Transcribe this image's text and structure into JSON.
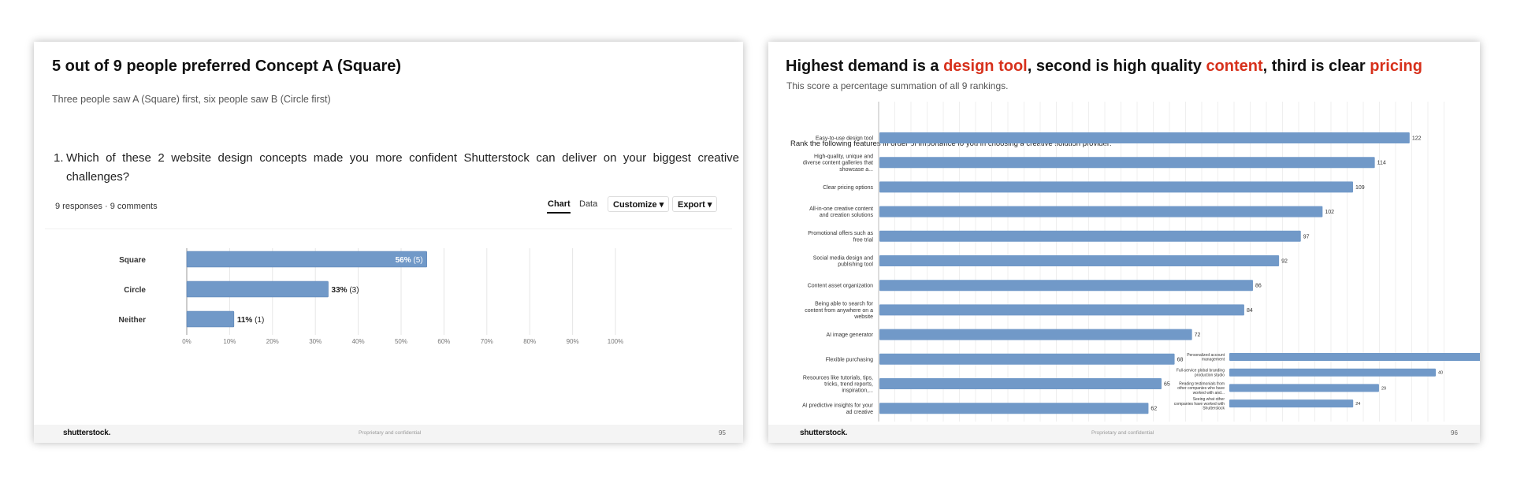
{
  "slides": [
    {
      "title": "5 out of 9 people preferred Concept A (Square)",
      "subtitle": "Three people saw A (Square) first, six people saw B (Circle first)",
      "question_number": "1.",
      "question_text": "Which of these 2 website design concepts made you more confident Shutterstock can deliver on your biggest creative challenges?",
      "meta": "9 responses · 9 comments",
      "tabs": [
        "Chart",
        "Data"
      ],
      "customize_label": "Customize",
      "export_label": "Export",
      "logo": "shutterstock.",
      "confidential": "Proprietary and confidential",
      "page_number": "95"
    },
    {
      "title_parts": [
        "Highest demand is a ",
        "design tool",
        ", second is high quality ",
        "content",
        ", third is clear ",
        "pricing"
      ],
      "subtitle": "This score a percentage summation of all 9 rankings.",
      "question": "Rank the following features in order of importance to you in choosing a creative solution provider:",
      "logo": "shutterstock.",
      "confidential": "Proprietary and confidential",
      "page_number": "96"
    }
  ],
  "colors": {
    "bar": "#7199c8",
    "accent": "#d7311c",
    "grid": "#e6e6e6"
  },
  "chart_data": [
    {
      "type": "bar",
      "orientation": "horizontal",
      "categories": [
        "Square",
        "Circle",
        "Neither"
      ],
      "values": [
        56,
        33,
        11
      ],
      "counts": [
        5,
        3,
        1
      ],
      "value_labels": [
        "56%",
        "33%",
        "11%"
      ],
      "count_labels": [
        "(5)",
        "(3)",
        "(1)"
      ],
      "xlim": [
        0,
        100
      ],
      "xticks": [
        0,
        10,
        20,
        30,
        40,
        50,
        60,
        70,
        80,
        90,
        100
      ],
      "xtick_labels": [
        "0%",
        "10%",
        "20%",
        "30%",
        "40%",
        "50%",
        "60%",
        "70%",
        "80%",
        "90%",
        "100%"
      ],
      "grid": true
    },
    {
      "type": "bar",
      "orientation": "horizontal",
      "categories": [
        [
          "Easy-to-use design tool"
        ],
        [
          "High-quality, unique and",
          "diverse content galleries that",
          "showcase a..."
        ],
        [
          "Clear pricing options"
        ],
        [
          "All-in-one creative content",
          "and creation solutions"
        ],
        [
          "Promotional offers such as",
          "free trial"
        ],
        [
          "Social media design and",
          "publishing tool"
        ],
        [
          "Content asset organization"
        ],
        [
          "Being able to search for",
          "content from anywhere on a",
          "website"
        ],
        [
          "AI image generator"
        ],
        [
          "Flexible purchasing"
        ],
        [
          "Resources like tutorials, tips,",
          "tricks, trend reports,",
          "inspiration,..."
        ],
        [
          "AI predictive insights for your",
          "ad creative"
        ]
      ],
      "values": [
        122,
        114,
        109,
        102,
        97,
        92,
        86,
        84,
        72,
        68,
        65,
        62
      ],
      "grid": true
    },
    {
      "type": "bar",
      "orientation": "horizontal",
      "categories": [
        [
          "Personalized account",
          "management"
        ],
        [
          "Full-service global branding",
          "production studio"
        ],
        [
          "Reading testimonials from",
          "other companies who have",
          "worked with and..."
        ],
        [
          "Seeing what other",
          "companies have worked with",
          "Shutterstock"
        ]
      ],
      "values": [
        58,
        40,
        29,
        24
      ]
    }
  ]
}
